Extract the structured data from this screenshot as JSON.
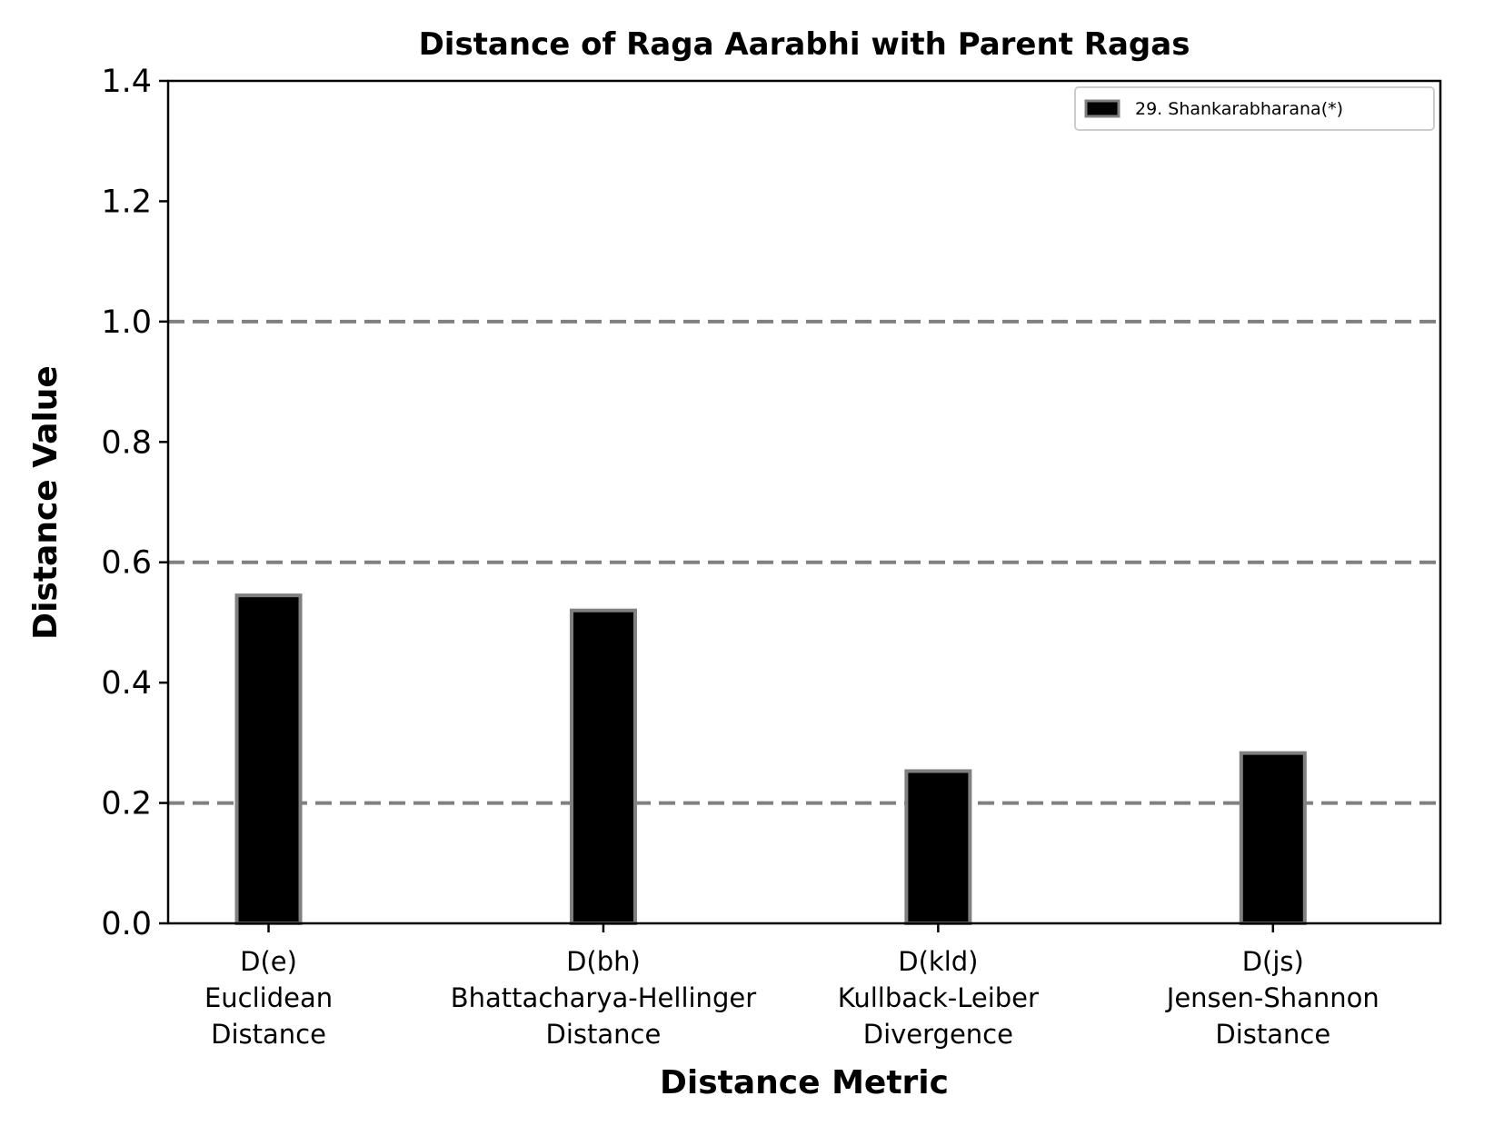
{
  "chart_data": {
    "type": "bar",
    "title": "Distance of Raga Aarabhi with Parent Ragas",
    "xlabel": "Distance Metric",
    "ylabel": "Distance Value",
    "ylim": [
      0,
      1.4
    ],
    "yticks": [
      "0.0",
      "0.2",
      "0.4",
      "0.6",
      "0.8",
      "1.0",
      "1.2",
      "1.4"
    ],
    "categories": [
      [
        "D(e)",
        "Euclidean",
        "Distance"
      ],
      [
        "D(bh)",
        "Bhattacharya-Hellinger",
        "Distance"
      ],
      [
        "D(kld)",
        "Kullback-Leiber",
        "Divergence"
      ],
      [
        "D(js)",
        "Jensen-Shannon",
        "Distance"
      ]
    ],
    "series": [
      {
        "name": "29. Shankarabharana(*)",
        "values": [
          0.545,
          0.52,
          0.253,
          0.283
        ]
      }
    ],
    "reference_lines": [
      0.2,
      0.6,
      1.0
    ],
    "colors": {
      "bar_fill": "#000000",
      "bar_edge": "#808080",
      "reference_line": "#808080"
    },
    "legend_position": "upper right",
    "grid": false
  }
}
